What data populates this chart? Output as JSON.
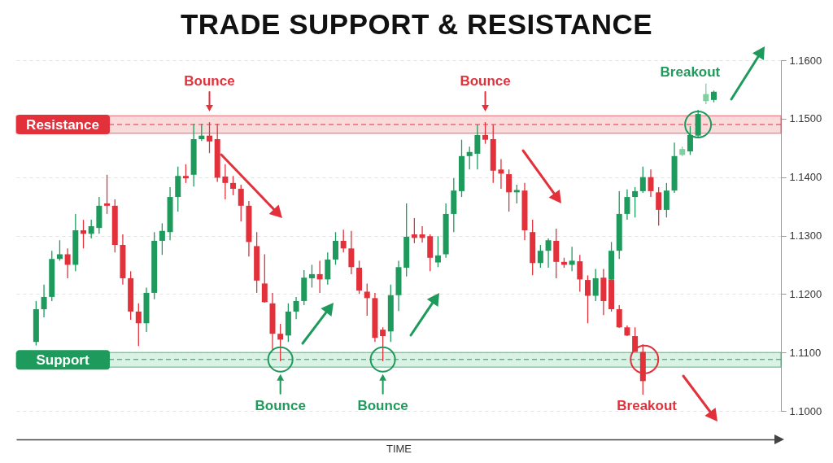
{
  "chart_data": {
    "type": "candlestick",
    "title": "TRADE SUPPORT & RESISTANCE",
    "xlabel": "TIME",
    "categories": [
      null,
      null,
      null,
      null,
      null,
      null,
      null,
      null,
      null,
      null,
      null,
      null,
      null,
      null,
      null,
      null,
      null,
      null,
      null,
      null,
      null,
      null,
      null,
      null,
      null,
      null,
      null,
      null,
      null,
      null,
      null,
      null,
      null,
      null,
      null,
      null,
      null,
      null,
      null,
      null,
      null,
      null,
      null,
      null,
      null,
      null,
      null,
      null,
      null,
      null,
      null,
      null,
      null,
      null,
      null,
      null,
      null,
      null,
      null,
      null,
      null,
      null,
      null,
      null,
      null,
      null,
      null,
      null,
      null,
      null,
      null,
      null,
      null,
      null,
      null,
      null,
      null,
      null,
      null,
      null,
      null,
      null,
      null,
      null,
      null,
      null,
      null,
      null,
      null,
      null,
      null,
      null,
      null,
      null,
      null,
      null,
      null
    ],
    "series": [
      {
        "ohlc": [
          null,
          null,
          [
            1.1118,
            1.1188,
            1.1112,
            1.1174
          ],
          [
            1.1174,
            1.1216,
            1.116,
            1.1195
          ],
          [
            1.1195,
            1.1274,
            1.1188,
            1.126
          ],
          [
            1.126,
            1.1292,
            1.1257,
            1.1268
          ],
          [
            1.1268,
            1.1278,
            1.1227,
            1.125
          ],
          [
            1.125,
            1.1337,
            1.1239,
            1.1309
          ],
          [
            1.1309,
            1.1327,
            1.1278,
            1.1303
          ],
          [
            1.1303,
            1.1327,
            1.1295,
            1.1316
          ],
          [
            1.1313,
            1.1366,
            1.1303,
            1.1351
          ],
          [
            1.1355,
            1.1404,
            1.1337,
            1.1351
          ],
          [
            1.1351,
            1.1362,
            1.1271,
            1.1284
          ],
          [
            1.1284,
            1.1302,
            1.1216,
            1.1227
          ],
          [
            1.1227,
            1.1239,
            1.1156,
            1.117
          ],
          [
            1.117,
            1.1184,
            1.1111,
            1.115
          ],
          [
            1.115,
            1.1211,
            1.1135,
            1.1202
          ],
          [
            1.1202,
            1.1306,
            1.1191,
            1.1291
          ],
          [
            1.1291,
            1.1321,
            1.1267,
            1.1308
          ],
          [
            1.1306,
            1.1383,
            1.1292,
            1.1366
          ],
          [
            1.1366,
            1.1418,
            1.1341,
            1.1402
          ],
          [
            1.1402,
            1.1422,
            1.139,
            1.1398
          ],
          [
            1.1404,
            1.1491,
            1.1384,
            1.1465
          ],
          [
            1.1465,
            1.1491,
            1.1462,
            1.1471
          ],
          [
            1.1471,
            1.1494,
            1.1441,
            1.1461
          ],
          [
            1.1465,
            1.1491,
            1.1392,
            1.1399
          ],
          [
            1.1401,
            1.1422,
            1.1362,
            1.139
          ],
          [
            1.139,
            1.1402,
            1.1369,
            1.138
          ],
          [
            1.138,
            1.1387,
            1.1324,
            1.1351
          ],
          [
            1.1351,
            1.1359,
            1.1264,
            1.1289
          ],
          [
            1.1282,
            1.1306,
            1.1202,
            1.1223
          ],
          [
            1.1218,
            1.1268,
            1.1185,
            1.1186
          ],
          [
            1.1184,
            1.1202,
            1.1104,
            1.1132
          ],
          [
            1.1132,
            1.1149,
            1.1085,
            1.1122
          ],
          [
            1.1129,
            1.1184,
            1.1118,
            1.117
          ],
          [
            1.117,
            1.1195,
            1.1157,
            1.1188
          ],
          [
            1.1188,
            1.1241,
            1.1181,
            1.1228
          ],
          [
            1.1227,
            1.125,
            1.1211,
            1.1234
          ],
          [
            1.1234,
            1.1257,
            1.1202,
            1.1225
          ],
          [
            1.1225,
            1.1271,
            1.1216,
            1.1259
          ],
          [
            1.1259,
            1.1306,
            1.125,
            1.1291
          ],
          [
            1.1291,
            1.131,
            1.1271,
            1.1278
          ],
          [
            1.1278,
            1.1308,
            1.1234,
            1.1246
          ],
          [
            1.1245,
            1.1257,
            1.12,
            1.1206
          ],
          [
            1.1204,
            1.1218,
            1.1163,
            1.1193
          ],
          [
            1.1193,
            1.1202,
            1.1118,
            1.1125
          ],
          [
            1.1139,
            1.1143,
            1.1085,
            1.1128
          ],
          [
            1.1136,
            1.1216,
            1.1118,
            1.1198
          ],
          [
            1.1198,
            1.1257,
            1.1171,
            1.1246
          ],
          [
            1.1245,
            1.1355,
            1.123,
            1.1298
          ],
          [
            1.1302,
            1.133,
            1.1287,
            1.1296
          ],
          [
            1.1302,
            1.1316,
            1.1288,
            1.1296
          ],
          [
            1.1299,
            1.1302,
            1.1239,
            1.1262
          ],
          [
            1.1254,
            1.1299,
            1.1246,
            1.1266
          ],
          [
            1.1268,
            1.1355,
            1.1262,
            1.1337
          ],
          [
            1.1337,
            1.1398,
            1.1306,
            1.1377
          ],
          [
            1.1376,
            1.1464,
            1.1366,
            1.1436
          ],
          [
            1.1436,
            1.1452,
            1.1413,
            1.1443
          ],
          [
            1.144,
            1.149,
            1.1413,
            1.1472
          ],
          [
            1.1472,
            1.1494,
            1.1457,
            1.1464
          ],
          [
            1.1465,
            1.149,
            1.139,
            1.1411
          ],
          [
            1.1413,
            1.1431,
            1.138,
            1.1406
          ],
          [
            1.1405,
            1.1413,
            1.1341,
            1.1374
          ],
          [
            1.1374,
            1.1387,
            1.1355,
            1.1378
          ],
          [
            1.1377,
            1.139,
            1.1292,
            1.1309
          ],
          [
            1.1306,
            1.1327,
            1.1232,
            1.1253
          ],
          [
            1.1253,
            1.1284,
            1.1245,
            1.1274
          ],
          [
            1.1274,
            1.1295,
            1.1245,
            1.1292
          ],
          [
            1.1291,
            1.1312,
            1.1227,
            1.1255
          ],
          [
            1.1255,
            1.1262,
            1.1245,
            1.125
          ],
          [
            1.125,
            1.1281,
            1.1239,
            1.1257
          ],
          [
            1.1256,
            1.1267,
            1.1204,
            1.1225
          ],
          [
            1.1224,
            1.1232,
            1.115,
            1.1197
          ],
          [
            1.1197,
            1.1243,
            1.1188,
            1.1227
          ],
          [
            1.1228,
            1.1243,
            1.1164,
            1.1188
          ],
          [
            1.1225,
            1.1289,
            1.122,
            1.1274
          ],
          [
            1.1274,
            1.1376,
            1.126,
            1.1337
          ],
          [
            1.1337,
            1.1379,
            1.1327,
            1.1366
          ],
          [
            1.1366,
            1.1383,
            1.1331,
            1.1376
          ],
          [
            1.1376,
            1.1418,
            1.1373,
            1.14
          ],
          [
            1.14,
            1.1413,
            1.1366,
            1.1376
          ],
          [
            1.1374,
            1.1383,
            1.1317,
            1.1344
          ],
          [
            1.1344,
            1.139,
            1.1331,
            1.1377
          ],
          [
            1.1377,
            1.1459,
            1.1373,
            1.1436
          ],
          [
            1.1438,
            1.1452,
            1.1436,
            1.1448
          ],
          [
            1.1444,
            1.1487,
            1.1438,
            1.1472
          ],
          [
            1.1471,
            1.1515,
            1.1469,
            1.1508
          ],
          [
            1.153,
            1.156,
            1.1525,
            1.1542
          ],
          [
            1.1532,
            1.1548,
            1.1528,
            1.1546
          ],
          null,
          null,
          null,
          null,
          null,
          null,
          null,
          null
        ],
        "colors": [
          null,
          null,
          "#1e9b5c",
          "#1e9b5c",
          "#1e9b5c",
          "#1e9b5c",
          "#e3313b",
          "#1e9b5c",
          "#e3313b",
          "#1e9b5c",
          "#1e9b5c",
          "#e3313b",
          "#e3313b",
          "#e3313b",
          "#e3313b",
          "#e3313b",
          "#1e9b5c",
          "#1e9b5c",
          "#1e9b5c",
          "#1e9b5c",
          "#1e9b5c",
          "#e3313b",
          "#1e9b5c",
          "#1e9b5c",
          "#e3313b",
          "#e3313b",
          "#e3313b",
          "#e3313b",
          "#e3313b",
          "#e3313b",
          "#e3313b",
          "#e3313b",
          "#e3313b",
          "#e3313b",
          "#1e9b5c",
          "#1e9b5c",
          "#1e9b5c",
          "#1e9b5c",
          "#e3313b",
          "#1e9b5c",
          "#1e9b5c",
          "#e3313b",
          "#e3313b",
          "#e3313b",
          "#e3313b",
          "#e3313b",
          "#e3313b",
          "#1e9b5c",
          "#1e9b5c",
          "#1e9b5c",
          "#e3313b",
          "#e3313b",
          "#e3313b",
          "#1e9b5c",
          "#1e9b5c",
          "#1e9b5c",
          "#1e9b5c",
          "#1e9b5c",
          "#1e9b5c",
          "#e3313b",
          "#e3313b",
          "#e3313b",
          "#e3313b",
          "#1e9b5c",
          "#e3313b",
          "#e3313b",
          "#1e9b5c",
          "#1e9b5c",
          "#e3313b",
          "#e3313b",
          "#1e9b5c",
          "#e3313b",
          "#e3313b",
          "#1e9b5c",
          "#e3313b",
          "#1e9b5c",
          "#1e9b5c",
          "#1e9b5c",
          "#1e9b5c",
          "#1e9b5c",
          "#e3313b",
          "#e3313b",
          "#1e9b5c",
          "#1e9b5c",
          "#7fcf9f",
          "#1e9b5c",
          "#1e9b5c",
          "#7fcf9f",
          "#1e9b5c",
          null,
          null,
          null,
          null,
          null,
          null,
          null,
          null
        ]
      },
      {
        "ohlc": [
          null,
          null,
          null,
          null,
          null,
          null,
          null,
          null,
          null,
          null,
          null,
          null,
          null,
          null,
          null,
          null,
          null,
          null,
          null,
          null,
          null,
          null,
          null,
          null,
          null,
          null,
          null,
          null,
          null,
          null,
          null,
          null,
          null,
          null,
          null,
          null,
          null,
          null,
          null,
          null,
          null,
          null,
          null,
          null,
          null,
          null,
          null,
          null,
          null,
          null,
          null,
          null,
          null,
          null,
          null,
          null,
          null,
          null,
          null,
          null,
          null,
          null,
          null,
          null,
          null,
          null,
          null,
          null,
          null,
          null,
          null,
          null,
          null,
          null,
          null,
          [
            1.1225,
            1.1225,
            1.117,
            1.1174
          ],
          [
            1.1174,
            1.1181,
            1.1142,
            1.1143
          ],
          [
            1.1143,
            1.1146,
            1.1128,
            1.1129
          ],
          [
            1.1128,
            1.1143,
            1.1101,
            1.1101
          ],
          [
            1.1101,
            1.1114,
            1.1028,
            1.1051
          ],
          null,
          null,
          null,
          null,
          null,
          null,
          null,
          null,
          null,
          null,
          null,
          null,
          null,
          null,
          null,
          null,
          null
        ],
        "colors": [
          null,
          null,
          null,
          null,
          null,
          null,
          null,
          null,
          null,
          null,
          null,
          null,
          null,
          null,
          null,
          null,
          null,
          null,
          null,
          null,
          null,
          null,
          null,
          null,
          null,
          null,
          null,
          null,
          null,
          null,
          null,
          null,
          null,
          null,
          null,
          null,
          null,
          null,
          null,
          null,
          null,
          null,
          null,
          null,
          null,
          null,
          null,
          null,
          null,
          null,
          null,
          null,
          null,
          null,
          null,
          null,
          null,
          null,
          null,
          null,
          null,
          null,
          null,
          null,
          null,
          null,
          null,
          null,
          null,
          null,
          null,
          null,
          null,
          null,
          null,
          "#e3313b",
          "#e3313b",
          "#e3313b",
          "#e3313b",
          "#e3313b",
          null,
          null,
          null,
          null,
          null,
          null,
          null,
          null,
          null,
          null,
          null,
          null,
          null,
          null,
          null,
          null,
          null
        ]
      }
    ],
    "ylim": [
      1.1,
      1.16
    ],
    "yticks": [
      {
        "value": 1.1,
        "label": "1.1000"
      },
      {
        "value": 1.11,
        "label": "1.1100"
      },
      {
        "value": 1.12,
        "label": "1.1200"
      },
      {
        "value": 1.13,
        "label": "1.1300"
      },
      {
        "value": 1.14,
        "label": "1.1400"
      },
      {
        "value": 1.15,
        "label": "1.1500"
      },
      {
        "value": 1.16,
        "label": "1.1600"
      }
    ],
    "tick_labels": "y",
    "grid": "y",
    "bands": [
      {
        "axis": "y",
        "from": 1.1475,
        "to": 1.1505,
        "label": "Resistance",
        "color": "#f9cfd1"
      },
      {
        "axis": "y",
        "from": 1.1075,
        "to": 1.11,
        "label": "Support",
        "color": "#cdeedb"
      }
    ],
    "ref_lines": [
      {
        "axis": "y",
        "value": 1.149,
        "color": "#e3313b",
        "line_style": "dashed"
      },
      {
        "axis": "y",
        "value": 1.1088,
        "color": "#1e9b5c",
        "line_style": "dashed"
      }
    ],
    "annotations": [
      {
        "text": "Bounce",
        "y": 1.149
      },
      {
        "text": "Bounce",
        "y": 1.1088
      },
      {
        "text": "Bounce",
        "y": 1.1088
      },
      {
        "text": "Bounce",
        "y": 1.149
      },
      {
        "text": "Breakout",
        "y": 1.1088
      },
      "Breakout"
    ]
  }
}
